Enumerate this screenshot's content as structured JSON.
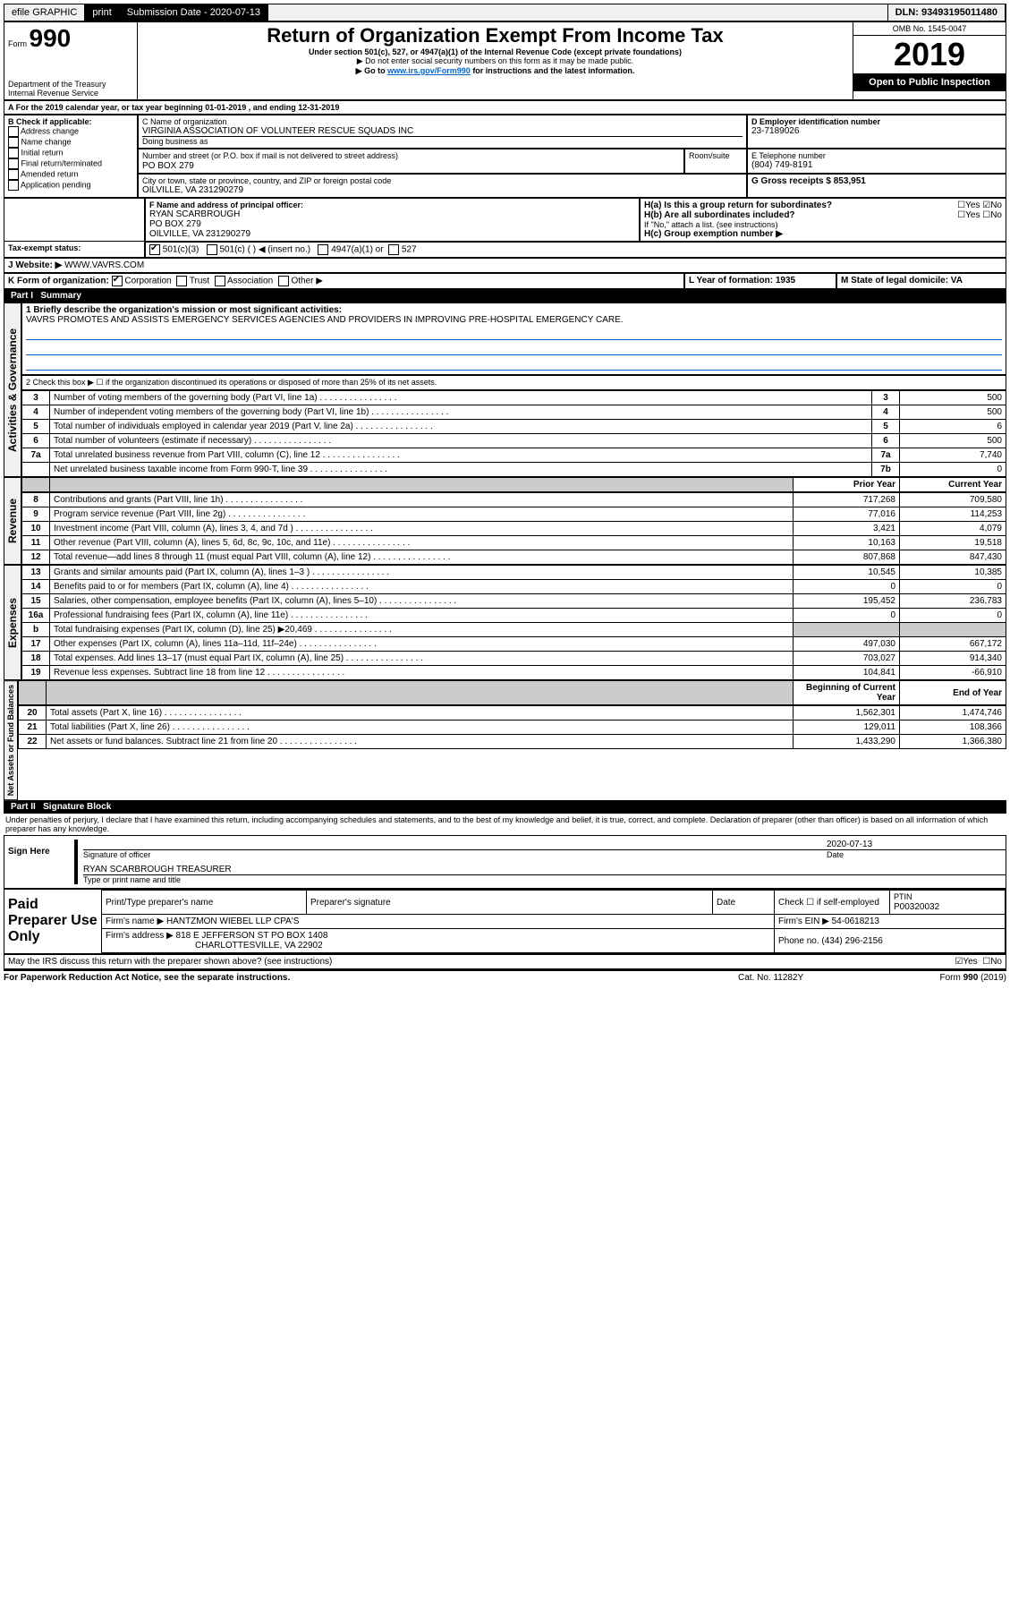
{
  "topbar": {
    "efile": "efile GRAPHIC",
    "print": "print",
    "sub_label": "Submission Date - 2020-07-13",
    "dln": "DLN: 93493195011480"
  },
  "header": {
    "form_prefix": "Form",
    "form_no": "990",
    "dept1": "Department of the Treasury",
    "dept2": "Internal Revenue Service",
    "title": "Return of Organization Exempt From Income Tax",
    "sub1": "Under section 501(c), 527, or 4947(a)(1) of the Internal Revenue Code (except private foundations)",
    "sub2": "▶ Do not enter social security numbers on this form as it may be made public.",
    "sub3_pre": "▶ Go to ",
    "sub3_link": "www.irs.gov/Form990",
    "sub3_post": " for instructions and the latest information.",
    "omb": "OMB No. 1545-0047",
    "year": "2019",
    "open": "Open to Public Inspection"
  },
  "period": "A For the 2019 calendar year, or tax year beginning 01-01-2019    , and ending 12-31-2019",
  "boxB": {
    "hdr": "B Check if applicable:",
    "opts": [
      "Address change",
      "Name change",
      "Initial return",
      "Final return/terminated",
      "Amended return",
      "Application pending"
    ]
  },
  "boxC": {
    "name_lbl": "C Name of organization",
    "name": "VIRGINIA ASSOCIATION OF VOLUNTEER RESCUE SQUADS INC",
    "dba": "Doing business as",
    "addr_lbl": "Number and street (or P.O. box if mail is not delivered to street address)",
    "room": "Room/suite",
    "addr": "PO BOX 279",
    "city_lbl": "City or town, state or province, country, and ZIP or foreign postal code",
    "city": "OILVILLE, VA  231290279"
  },
  "boxD": {
    "lbl": "D Employer identification number",
    "val": "23-7189026"
  },
  "boxE": {
    "lbl": "E Telephone number",
    "val": "(804) 749-8191"
  },
  "boxG": {
    "lbl": "G Gross receipts $ 853,951"
  },
  "boxF": {
    "lbl": "F Name and address of principal officer:",
    "name": "RYAN SCARBROUGH",
    "addr1": "PO BOX 279",
    "addr2": "OILVILLE, VA  231290279"
  },
  "boxH": {
    "a": "H(a)  Is this a group return for subordinates?",
    "a_yes": "Yes",
    "a_no": "No",
    "b": "H(b)  Are all subordinates included?",
    "b_yes": "Yes",
    "b_no": "No",
    "b_note": "If \"No,\" attach a list. (see instructions)",
    "c": "H(c)  Group exemption number ▶"
  },
  "tax_status": {
    "lbl": "Tax-exempt status:",
    "o1": "501(c)(3)",
    "o2": "501(c) (   ) ◀ (insert no.)",
    "o3": "4947(a)(1) or",
    "o4": "527"
  },
  "website": {
    "lbl": "J   Website: ▶",
    "val": "WWW.VAVRS.COM"
  },
  "boxK": {
    "lbl": "K Form of organization:",
    "corp": "Corporation",
    "trust": "Trust",
    "assoc": "Association",
    "other": "Other ▶"
  },
  "boxL": {
    "lbl": "L Year of formation: 1935"
  },
  "boxM": {
    "lbl": "M State of legal domicile: VA"
  },
  "part1": {
    "hdr": "Part I",
    "title": "Summary",
    "l1_lbl": "1  Briefly describe the organization's mission or most significant activities:",
    "l1_val": "VAVRS PROMOTES AND ASSISTS EMERGENCY SERVICES AGENCIES AND PROVIDERS IN IMPROVING PRE-HOSPITAL EMERGENCY CARE.",
    "l2": "2   Check this box ▶ ☐  if the organization discontinued its operations or disposed of more than 25% of its net assets.",
    "rows_a": [
      {
        "n": "3",
        "t": "Number of voting members of the governing body (Part VI, line 1a)",
        "c": "3",
        "v": "500"
      },
      {
        "n": "4",
        "t": "Number of independent voting members of the governing body (Part VI, line 1b)",
        "c": "4",
        "v": "500"
      },
      {
        "n": "5",
        "t": "Total number of individuals employed in calendar year 2019 (Part V, line 2a)",
        "c": "5",
        "v": "6"
      },
      {
        "n": "6",
        "t": "Total number of volunteers (estimate if necessary)",
        "c": "6",
        "v": "500"
      },
      {
        "n": "7a",
        "t": "Total unrelated business revenue from Part VIII, column (C), line 12",
        "c": "7a",
        "v": "7,740"
      },
      {
        "n": "",
        "t": "Net unrelated business taxable income from Form 990-T, line 39",
        "c": "7b",
        "v": "0"
      }
    ],
    "hdr_prior": "Prior Year",
    "hdr_curr": "Current Year",
    "rows_rev": [
      {
        "n": "8",
        "t": "Contributions and grants (Part VIII, line 1h)",
        "p": "717,268",
        "c": "709,580"
      },
      {
        "n": "9",
        "t": "Program service revenue (Part VIII, line 2g)",
        "p": "77,016",
        "c": "114,253"
      },
      {
        "n": "10",
        "t": "Investment income (Part VIII, column (A), lines 3, 4, and 7d )",
        "p": "3,421",
        "c": "4,079"
      },
      {
        "n": "11",
        "t": "Other revenue (Part VIII, column (A), lines 5, 6d, 8c, 9c, 10c, and 11e)",
        "p": "10,163",
        "c": "19,518"
      },
      {
        "n": "12",
        "t": "Total revenue—add lines 8 through 11 (must equal Part VIII, column (A), line 12)",
        "p": "807,868",
        "c": "847,430"
      }
    ],
    "rows_exp": [
      {
        "n": "13",
        "t": "Grants and similar amounts paid (Part IX, column (A), lines 1–3 )",
        "p": "10,545",
        "c": "10,385"
      },
      {
        "n": "14",
        "t": "Benefits paid to or for members (Part IX, column (A), line 4)",
        "p": "0",
        "c": "0"
      },
      {
        "n": "15",
        "t": "Salaries, other compensation, employee benefits (Part IX, column (A), lines 5–10)",
        "p": "195,452",
        "c": "236,783"
      },
      {
        "n": "16a",
        "t": "Professional fundraising fees (Part IX, column (A), line 11e)",
        "p": "0",
        "c": "0"
      },
      {
        "n": "b",
        "t": "Total fundraising expenses (Part IX, column (D), line 25) ▶20,469",
        "p": "",
        "c": ""
      },
      {
        "n": "17",
        "t": "Other expenses (Part IX, column (A), lines 11a–11d, 11f–24e)",
        "p": "497,030",
        "c": "667,172"
      },
      {
        "n": "18",
        "t": "Total expenses. Add lines 13–17 (must equal Part IX, column (A), line 25)",
        "p": "703,027",
        "c": "914,340"
      },
      {
        "n": "19",
        "t": "Revenue less expenses. Subtract line 18 from line 12",
        "p": "104,841",
        "c": "-66,910"
      }
    ],
    "hdr_beg": "Beginning of Current Year",
    "hdr_end": "End of Year",
    "rows_net": [
      {
        "n": "20",
        "t": "Total assets (Part X, line 16)",
        "p": "1,562,301",
        "c": "1,474,746"
      },
      {
        "n": "21",
        "t": "Total liabilities (Part X, line 26)",
        "p": "129,011",
        "c": "108,366"
      },
      {
        "n": "22",
        "t": "Net assets or fund balances. Subtract line 21 from line 20",
        "p": "1,433,290",
        "c": "1,366,380"
      }
    ],
    "vl_gov": "Activities & Governance",
    "vl_rev": "Revenue",
    "vl_exp": "Expenses",
    "vl_net": "Net Assets or Fund Balances"
  },
  "part2": {
    "hdr": "Part II",
    "title": "Signature Block",
    "decl": "Under penalties of perjury, I declare that I have examined this return, including accompanying schedules and statements, and to the best of my knowledge and belief, it is true, correct, and complete. Declaration of preparer (other than officer) is based on all information of which preparer has any knowledge.",
    "sign_here": "Sign Here",
    "sig_off": "Signature of officer",
    "date": "Date",
    "date_val": "2020-07-13",
    "name_title": "RYAN SCARBROUGH  TREASURER",
    "name_lbl": "Type or print name and title",
    "paid": "Paid Preparer Use Only",
    "col1": "Print/Type preparer's name",
    "col2": "Preparer's signature",
    "col3": "Date",
    "self_emp": "Check ☐ if self-employed",
    "ptin_lbl": "PTIN",
    "ptin": "P00320032",
    "firm_lbl": "Firm's name    ▶",
    "firm": "HANTZMON WIEBEL LLP CPA'S",
    "ein_lbl": "Firm's EIN ▶",
    "ein": "54-0618213",
    "addr_lbl": "Firm's address ▶",
    "addr": "818 E JEFFERSON ST PO BOX 1408",
    "city": "CHARLOTTESVILLE, VA  22902",
    "phone_lbl": "Phone no.",
    "phone": "(434) 296-2156",
    "discuss": "May the IRS discuss this return with the preparer shown above? (see instructions)",
    "yes": "Yes",
    "no": "No"
  },
  "footer": {
    "pra": "For Paperwork Reduction Act Notice, see the separate instructions.",
    "cat": "Cat. No. 11282Y",
    "form": "Form 990 (2019)"
  }
}
